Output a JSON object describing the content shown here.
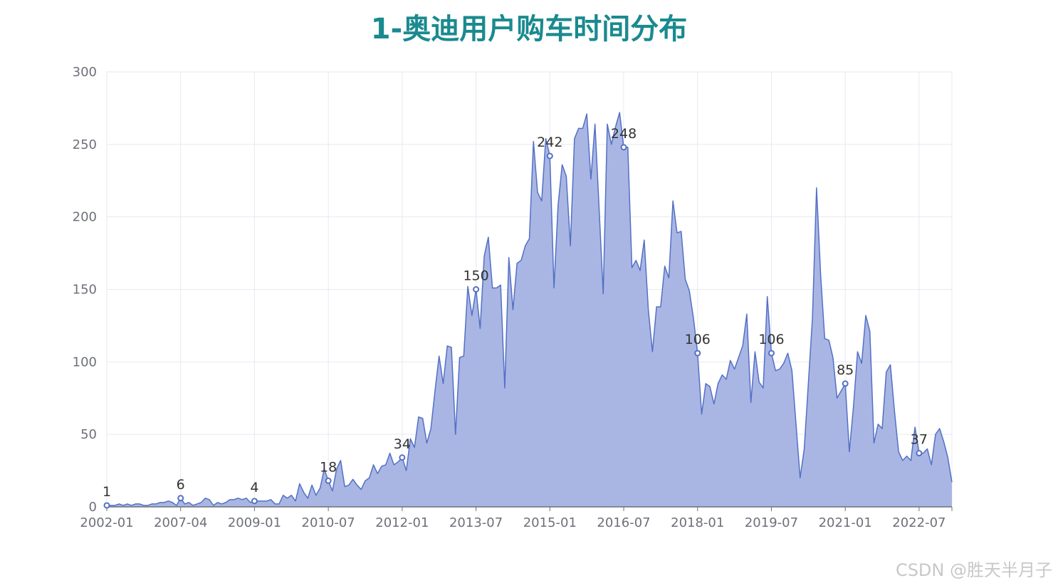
{
  "chart_data": {
    "type": "area",
    "title": "1-奥迪用户购车时间分布",
    "xlabel": "",
    "ylabel": "",
    "ylim": [
      0,
      300
    ],
    "y_ticks": [
      "0",
      "50",
      "100",
      "150",
      "200",
      "250",
      "300"
    ],
    "x_ticks": [
      "2002-01",
      "2007-04",
      "2009-01",
      "2010-07",
      "2012-01",
      "2013-07",
      "2015-01",
      "2016-07",
      "2018-01",
      "2019-07",
      "2021-01",
      "2022-07"
    ],
    "grid": true,
    "series_color": "#5470c6",
    "fill_color": "#a9b6e3",
    "values": [
      1,
      1,
      1,
      2,
      1,
      2,
      1,
      2,
      2,
      1,
      1,
      2,
      2,
      3,
      3,
      4,
      3,
      1,
      6,
      2,
      3,
      1,
      2,
      3,
      6,
      5,
      1,
      3,
      2,
      3,
      5,
      5,
      6,
      5,
      6,
      3,
      4,
      4,
      4,
      4,
      5,
      2,
      2,
      8,
      6,
      8,
      4,
      16,
      10,
      6,
      15,
      8,
      13,
      26,
      18,
      11,
      26,
      32,
      14,
      15,
      19,
      15,
      12,
      18,
      20,
      29,
      23,
      28,
      29,
      37,
      29,
      31,
      34,
      25,
      47,
      41,
      62,
      61,
      44,
      54,
      80,
      104,
      85,
      111,
      110,
      50,
      103,
      104,
      152,
      132,
      150,
      123,
      173,
      186,
      151,
      151,
      153,
      82,
      172,
      136,
      168,
      170,
      180,
      185,
      252,
      217,
      211,
      254,
      242,
      151,
      208,
      236,
      228,
      180,
      254,
      261,
      261,
      271,
      226,
      264,
      206,
      147,
      264,
      250,
      262,
      272,
      248,
      248,
      165,
      170,
      163,
      184,
      136,
      107,
      138,
      138,
      166,
      158,
      211,
      189,
      190,
      157,
      149,
      130,
      106,
      64,
      85,
      83,
      71,
      85,
      91,
      88,
      101,
      95,
      103,
      111,
      133,
      72,
      107,
      86,
      82,
      145,
      106,
      94,
      95,
      99,
      106,
      94,
      57,
      20,
      40,
      85,
      130,
      220,
      160,
      116,
      115,
      103,
      75,
      80,
      85,
      38,
      69,
      107,
      99,
      132,
      121,
      44,
      57,
      54,
      93,
      98,
      66,
      38,
      32,
      35,
      32,
      55,
      37,
      37,
      40,
      29,
      50,
      54,
      45,
      34,
      17
    ],
    "point_labels": [
      {
        "index": 0,
        "value": 1,
        "label": "1"
      },
      {
        "index": 18,
        "value": 6,
        "label": "6"
      },
      {
        "index": 36,
        "value": 4,
        "label": "4"
      },
      {
        "index": 54,
        "value": 18,
        "label": "18"
      },
      {
        "index": 72,
        "value": 34,
        "label": "34"
      },
      {
        "index": 90,
        "value": 150,
        "label": "150"
      },
      {
        "index": 108,
        "value": 242,
        "label": "242"
      },
      {
        "index": 126,
        "value": 248,
        "label": "248"
      },
      {
        "index": 144,
        "value": 106,
        "label": "106"
      },
      {
        "index": 162,
        "value": 106,
        "label": "106"
      },
      {
        "index": 180,
        "value": 85,
        "label": "85"
      },
      {
        "index": 198,
        "value": 37,
        "label": "37"
      }
    ]
  },
  "watermark": "CSDN @胜天半月子"
}
